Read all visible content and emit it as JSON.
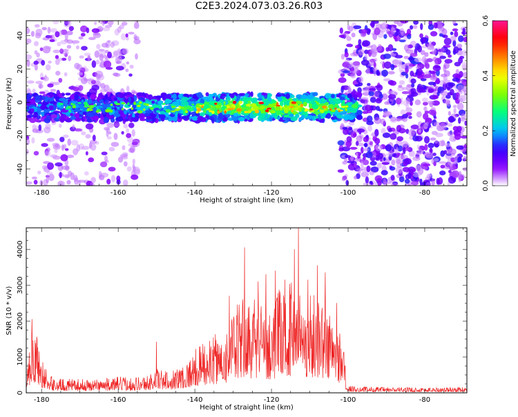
{
  "title": "C2E3.2024.073.03.26.R03",
  "chart_data": [
    {
      "type": "heatmap",
      "xlabel": "Height of straight line (km)",
      "ylabel": "Frequency (Hz)",
      "xlim": [
        -184,
        -69
      ],
      "ylim": [
        -50,
        49
      ],
      "x_ticks": [
        -180,
        -160,
        -140,
        -120,
        -100,
        -80
      ],
      "y_ticks": [
        -40,
        -20,
        0,
        20,
        40
      ],
      "colorbar": {
        "label": "Normalized spectral amplitude",
        "range": [
          0.0,
          0.6
        ],
        "ticks": [
          0.0,
          0.2,
          0.4,
          0.6
        ],
        "colormap": "rainbow",
        "colors": [
          "#ffffff",
          "#8b00ff",
          "#3300ff",
          "#00bfff",
          "#00ff7f",
          "#7fff00",
          "#ffff00",
          "#ff7f00",
          "#ff0000",
          "#ff1493"
        ]
      },
      "band": {
        "center_freq_hz": -3,
        "half_width_hz": 8,
        "x_range": [
          -184,
          -97
        ],
        "peak_amplitude": 0.6
      },
      "background_noise": [
        {
          "x_range": [
            -184,
            -155
          ],
          "amplitude_level": 0.1
        },
        {
          "x_range": [
            -102,
            -69
          ],
          "amplitude_level": 0.15
        }
      ]
    },
    {
      "type": "line",
      "xlabel": "Height of straight line (km)",
      "ylabel": "SNR (10 * v/v)",
      "xlim": [
        -184,
        -69
      ],
      "ylim": [
        0,
        4600
      ],
      "x_ticks": [
        -180,
        -160,
        -140,
        -120,
        -100,
        -80
      ],
      "y_ticks": [
        0,
        1000,
        2000,
        3000,
        4000
      ],
      "color": "#ee2222",
      "series": [
        {
          "envelope": {
            "x": [
              -184,
              -183,
              -182,
              -181,
              -180,
              -179,
              -178,
              -176,
              -172,
              -168,
              -164,
              -160,
              -156,
              -152,
              -150,
              -148,
              -146,
              -144,
              -142,
              -140,
              -138,
              -136,
              -134,
              -132,
              -130,
              -128,
              -126,
              -124,
              -122,
              -120,
              -118,
              -116,
              -114,
              -112,
              -110,
              -108,
              -106,
              -104,
              -102,
              -101,
              -100.5,
              -98,
              -90,
              -80,
              -70
            ],
            "y": [
              700,
              1500,
              2000,
              1500,
              1000,
              700,
              500,
              400,
              380,
              380,
              400,
              450,
              450,
              500,
              700,
              600,
              650,
              750,
              900,
              1200,
              1400,
              1500,
              1700,
              1800,
              2200,
              2700,
              2600,
              2800,
              2400,
              2500,
              2900,
              3000,
              3300,
              2800,
              2800,
              2900,
              2600,
              2200,
              1800,
              1500,
              200,
              180,
              160,
              150,
              160
            ]
          },
          "peaks": {
            "x": [
              -182.5,
              -150,
              -131,
              -127,
              -123.5,
              -121.5,
              -119,
              -116.5,
              -114,
              -113,
              -110.5,
              -108,
              -106,
              -103
            ],
            "y": [
              2050,
              1420,
              2700,
              4050,
              3100,
              3300,
              3400,
              3150,
              4000,
              4600,
              3150,
              3550,
              3350,
              2500
            ]
          }
        }
      ]
    }
  ]
}
